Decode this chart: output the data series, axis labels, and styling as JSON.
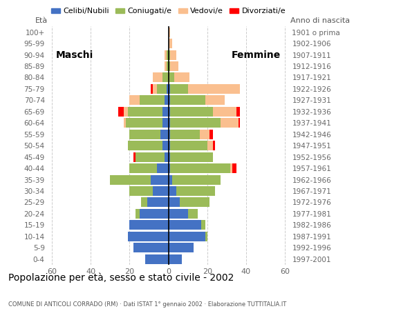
{
  "title": "Popolazione per età, sesso e stato civile - 2002",
  "subtitle": "COMUNE DI ANTICOLI CORRADO (RM) · Dati ISTAT 1° gennaio 2002 · Elaborazione TUTTITALIA.IT",
  "label_maschi": "Maschi",
  "label_femmine": "Femmine",
  "label_eta": "Età",
  "label_anno": "Anno di nascita",
  "age_groups": [
    "0-4",
    "5-9",
    "10-14",
    "15-19",
    "20-24",
    "25-29",
    "30-34",
    "35-39",
    "40-44",
    "45-49",
    "50-54",
    "55-59",
    "60-64",
    "65-69",
    "70-74",
    "75-79",
    "80-84",
    "85-89",
    "90-94",
    "95-99",
    "100+"
  ],
  "birth_years": [
    "1997-2001",
    "1992-1996",
    "1987-1991",
    "1982-1986",
    "1977-1981",
    "1972-1976",
    "1967-1971",
    "1962-1966",
    "1957-1961",
    "1952-1956",
    "1947-1951",
    "1942-1946",
    "1937-1941",
    "1932-1936",
    "1927-1931",
    "1922-1926",
    "1917-1921",
    "1912-1916",
    "1907-1911",
    "1902-1906",
    "1901 o prima"
  ],
  "colors": {
    "celibe": "#4472C4",
    "coniugato": "#9BBB59",
    "vedovo": "#FABF8F",
    "divorziato": "#FF0000"
  },
  "legend_labels": [
    "Celibi/Nubili",
    "Coniugati/e",
    "Vedovi/e",
    "Divorziati/e"
  ],
  "males": {
    "celibe": [
      12,
      18,
      21,
      20,
      15,
      11,
      8,
      9,
      6,
      2,
      3,
      4,
      3,
      3,
      2,
      1,
      0,
      0,
      0,
      0,
      0
    ],
    "coniugato": [
      0,
      0,
      0,
      0,
      2,
      3,
      12,
      21,
      14,
      15,
      18,
      16,
      19,
      18,
      13,
      5,
      3,
      1,
      1,
      0,
      0
    ],
    "vedovo": [
      0,
      0,
      0,
      0,
      0,
      0,
      0,
      0,
      0,
      0,
      0,
      0,
      1,
      2,
      5,
      2,
      5,
      1,
      1,
      0,
      0
    ],
    "divorziato": [
      0,
      0,
      0,
      0,
      0,
      0,
      0,
      0,
      0,
      1,
      0,
      0,
      0,
      3,
      0,
      1,
      0,
      0,
      0,
      0,
      0
    ]
  },
  "females": {
    "celibe": [
      7,
      13,
      19,
      17,
      10,
      6,
      4,
      2,
      1,
      1,
      1,
      1,
      1,
      1,
      1,
      1,
      0,
      0,
      0,
      0,
      0
    ],
    "coniugato": [
      0,
      0,
      1,
      2,
      5,
      15,
      20,
      25,
      31,
      22,
      19,
      15,
      26,
      22,
      18,
      9,
      3,
      1,
      1,
      0,
      0
    ],
    "vedovo": [
      0,
      0,
      0,
      0,
      0,
      0,
      0,
      0,
      1,
      0,
      3,
      5,
      9,
      12,
      10,
      27,
      8,
      4,
      3,
      2,
      1
    ],
    "divorziato": [
      0,
      0,
      0,
      0,
      0,
      0,
      0,
      0,
      2,
      0,
      1,
      2,
      1,
      2,
      0,
      0,
      0,
      0,
      0,
      0,
      0
    ]
  },
  "xlim": 62,
  "xtick_vals": [
    -60,
    -40,
    -20,
    0,
    20,
    40,
    60
  ],
  "xticklabels": [
    "60",
    "40",
    "20",
    "0",
    "20",
    "40",
    "60"
  ],
  "bg_color": "#ffffff",
  "grid_color": "#cccccc",
  "bar_height": 0.85
}
